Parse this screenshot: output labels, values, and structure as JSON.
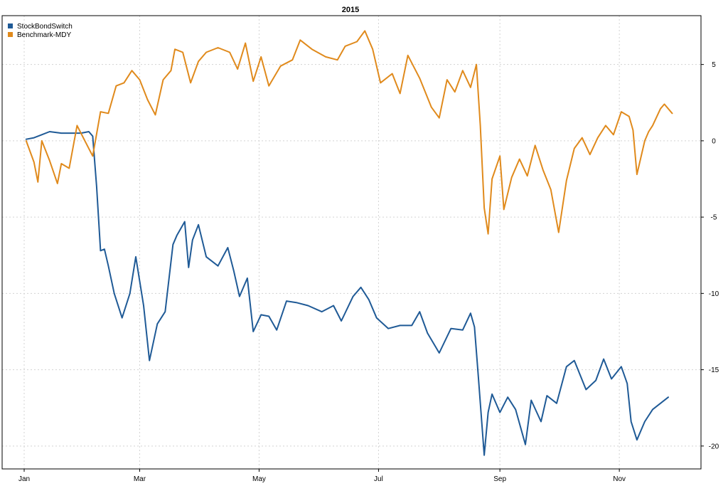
{
  "chart_data": {
    "type": "line",
    "title": "2015",
    "xlabel": "",
    "ylabel": "",
    "x_ticks": [
      "Jan",
      "Mar",
      "May",
      "Jul",
      "Sep",
      "Nov"
    ],
    "y_ticks": [
      5,
      0,
      -5,
      -10,
      -15,
      -20
    ],
    "ylim": [
      -21.5,
      8.2
    ],
    "xlim": [
      "2015-01-01",
      "2015-11-30"
    ],
    "grid": true,
    "legend_position": "top-left",
    "series": [
      {
        "name": "StockBondSwitch",
        "color": "#1f5a96",
        "points": [
          [
            "2015-01-02",
            0.1
          ],
          [
            "2015-01-06",
            0.2
          ],
          [
            "2015-01-10",
            0.4
          ],
          [
            "2015-01-14",
            0.6
          ],
          [
            "2015-01-20",
            0.5
          ],
          [
            "2015-01-26",
            0.5
          ],
          [
            "2015-01-30",
            0.5
          ],
          [
            "2015-02-03",
            0.6
          ],
          [
            "2015-02-05",
            0.3
          ],
          [
            "2015-02-07",
            -3.0
          ],
          [
            "2015-02-09",
            -7.2
          ],
          [
            "2015-02-11",
            -7.1
          ],
          [
            "2015-02-13",
            -8.2
          ],
          [
            "2015-02-16",
            -10.0
          ],
          [
            "2015-02-20",
            -11.6
          ],
          [
            "2015-02-24",
            -10.0
          ],
          [
            "2015-02-27",
            -7.6
          ],
          [
            "2015-03-03",
            -10.8
          ],
          [
            "2015-03-06",
            -14.4
          ],
          [
            "2015-03-10",
            -12.0
          ],
          [
            "2015-03-14",
            -11.2
          ],
          [
            "2015-03-18",
            -6.8
          ],
          [
            "2015-03-20",
            -6.2
          ],
          [
            "2015-03-24",
            -5.3
          ],
          [
            "2015-03-26",
            -8.3
          ],
          [
            "2015-03-28",
            -6.5
          ],
          [
            "2015-03-31",
            -5.5
          ],
          [
            "2015-04-04",
            -7.6
          ],
          [
            "2015-04-10",
            -8.2
          ],
          [
            "2015-04-15",
            -7.0
          ],
          [
            "2015-04-18",
            -8.5
          ],
          [
            "2015-04-21",
            -10.2
          ],
          [
            "2015-04-25",
            -9.0
          ],
          [
            "2015-04-28",
            -12.5
          ],
          [
            "2015-05-02",
            -11.4
          ],
          [
            "2015-05-06",
            -11.5
          ],
          [
            "2015-05-10",
            -12.4
          ],
          [
            "2015-05-15",
            -10.5
          ],
          [
            "2015-05-20",
            -10.6
          ],
          [
            "2015-05-26",
            -10.8
          ],
          [
            "2015-06-02",
            -11.2
          ],
          [
            "2015-06-08",
            -10.8
          ],
          [
            "2015-06-12",
            -11.8
          ],
          [
            "2015-06-18",
            -10.2
          ],
          [
            "2015-06-22",
            -9.6
          ],
          [
            "2015-06-26",
            -10.4
          ],
          [
            "2015-06-30",
            -11.6
          ],
          [
            "2015-07-06",
            -12.3
          ],
          [
            "2015-07-12",
            -12.1
          ],
          [
            "2015-07-18",
            -12.1
          ],
          [
            "2015-07-22",
            -11.2
          ],
          [
            "2015-07-26",
            -12.6
          ],
          [
            "2015-08-01",
            -13.9
          ],
          [
            "2015-08-07",
            -12.3
          ],
          [
            "2015-08-13",
            -12.4
          ],
          [
            "2015-08-17",
            -11.3
          ],
          [
            "2015-08-19",
            -12.2
          ],
          [
            "2015-08-21",
            -15.5
          ],
          [
            "2015-08-24",
            -20.6
          ],
          [
            "2015-08-26",
            -17.8
          ],
          [
            "2015-08-28",
            -16.6
          ],
          [
            "2015-09-01",
            -17.8
          ],
          [
            "2015-09-05",
            -16.8
          ],
          [
            "2015-09-09",
            -17.6
          ],
          [
            "2015-09-14",
            -19.9
          ],
          [
            "2015-09-17",
            -17.0
          ],
          [
            "2015-09-22",
            -18.4
          ],
          [
            "2015-09-25",
            -16.7
          ],
          [
            "2015-09-30",
            -17.2
          ],
          [
            "2015-10-05",
            -14.8
          ],
          [
            "2015-10-09",
            -14.4
          ],
          [
            "2015-10-15",
            -16.3
          ],
          [
            "2015-10-20",
            -15.7
          ],
          [
            "2015-10-24",
            -14.3
          ],
          [
            "2015-10-28",
            -15.6
          ],
          [
            "2015-11-02",
            -14.8
          ],
          [
            "2015-11-05",
            -15.9
          ],
          [
            "2015-11-07",
            -18.4
          ],
          [
            "2015-11-10",
            -19.6
          ],
          [
            "2015-11-14",
            -18.4
          ],
          [
            "2015-11-18",
            -17.6
          ],
          [
            "2015-11-22",
            -17.2
          ],
          [
            "2015-11-26",
            -16.8
          ]
        ]
      },
      {
        "name": "Benchmark-MDY",
        "color": "#e08a1c",
        "points": [
          [
            "2015-01-02",
            0.0
          ],
          [
            "2015-01-06",
            -1.4
          ],
          [
            "2015-01-08",
            -2.7
          ],
          [
            "2015-01-10",
            0.0
          ],
          [
            "2015-01-14",
            -1.3
          ],
          [
            "2015-01-18",
            -2.8
          ],
          [
            "2015-01-20",
            -1.5
          ],
          [
            "2015-01-24",
            -1.8
          ],
          [
            "2015-01-28",
            1.0
          ],
          [
            "2015-02-01",
            0.0
          ],
          [
            "2015-02-05",
            -1.0
          ],
          [
            "2015-02-09",
            1.9
          ],
          [
            "2015-02-13",
            1.8
          ],
          [
            "2015-02-17",
            3.6
          ],
          [
            "2015-02-21",
            3.8
          ],
          [
            "2015-02-25",
            4.6
          ],
          [
            "2015-03-01",
            4.0
          ],
          [
            "2015-03-05",
            2.7
          ],
          [
            "2015-03-09",
            1.7
          ],
          [
            "2015-03-13",
            4.0
          ],
          [
            "2015-03-17",
            4.6
          ],
          [
            "2015-03-19",
            6.0
          ],
          [
            "2015-03-23",
            5.8
          ],
          [
            "2015-03-27",
            3.8
          ],
          [
            "2015-03-31",
            5.2
          ],
          [
            "2015-04-04",
            5.8
          ],
          [
            "2015-04-10",
            6.1
          ],
          [
            "2015-04-16",
            5.8
          ],
          [
            "2015-04-20",
            4.7
          ],
          [
            "2015-04-24",
            6.4
          ],
          [
            "2015-04-28",
            3.9
          ],
          [
            "2015-05-02",
            5.5
          ],
          [
            "2015-05-06",
            3.6
          ],
          [
            "2015-05-12",
            4.9
          ],
          [
            "2015-05-18",
            5.3
          ],
          [
            "2015-05-22",
            6.6
          ],
          [
            "2015-05-28",
            6.0
          ],
          [
            "2015-06-04",
            5.5
          ],
          [
            "2015-06-10",
            5.3
          ],
          [
            "2015-06-14",
            6.2
          ],
          [
            "2015-06-20",
            6.5
          ],
          [
            "2015-06-24",
            7.2
          ],
          [
            "2015-06-28",
            6.0
          ],
          [
            "2015-07-02",
            3.8
          ],
          [
            "2015-07-08",
            4.4
          ],
          [
            "2015-07-12",
            3.1
          ],
          [
            "2015-07-16",
            5.6
          ],
          [
            "2015-07-22",
            4.1
          ],
          [
            "2015-07-28",
            2.2
          ],
          [
            "2015-08-01",
            1.5
          ],
          [
            "2015-08-05",
            4.0
          ],
          [
            "2015-08-09",
            3.2
          ],
          [
            "2015-08-13",
            4.6
          ],
          [
            "2015-08-17",
            3.5
          ],
          [
            "2015-08-20",
            5.0
          ],
          [
            "2015-08-22",
            1.0
          ],
          [
            "2015-08-24",
            -4.4
          ],
          [
            "2015-08-26",
            -6.1
          ],
          [
            "2015-08-28",
            -2.5
          ],
          [
            "2015-09-01",
            -1.0
          ],
          [
            "2015-09-03",
            -4.5
          ],
          [
            "2015-09-07",
            -2.4
          ],
          [
            "2015-09-11",
            -1.2
          ],
          [
            "2015-09-15",
            -2.3
          ],
          [
            "2015-09-19",
            -0.3
          ],
          [
            "2015-09-23",
            -1.9
          ],
          [
            "2015-09-27",
            -3.2
          ],
          [
            "2015-10-01",
            -6.0
          ],
          [
            "2015-10-05",
            -2.6
          ],
          [
            "2015-10-09",
            -0.5
          ],
          [
            "2015-10-13",
            0.2
          ],
          [
            "2015-10-17",
            -0.9
          ],
          [
            "2015-10-21",
            0.2
          ],
          [
            "2015-10-25",
            1.0
          ],
          [
            "2015-10-29",
            0.4
          ],
          [
            "2015-11-02",
            1.9
          ],
          [
            "2015-11-06",
            1.6
          ],
          [
            "2015-11-08",
            0.7
          ],
          [
            "2015-11-10",
            -2.2
          ],
          [
            "2015-11-14",
            0.0
          ],
          [
            "2015-11-16",
            0.6
          ],
          [
            "2015-11-18",
            1.0
          ],
          [
            "2015-11-22",
            2.1
          ],
          [
            "2015-11-24",
            2.4
          ],
          [
            "2015-11-28",
            1.8
          ]
        ]
      }
    ]
  }
}
